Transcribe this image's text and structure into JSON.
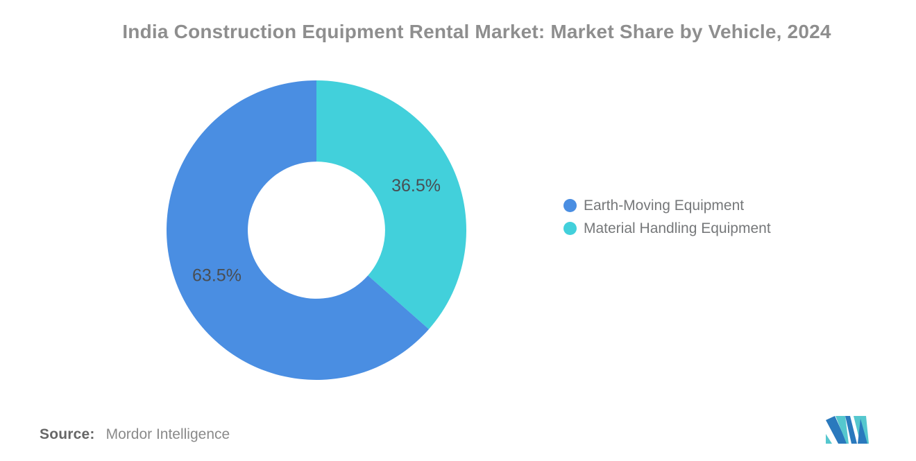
{
  "title": "India Construction Equipment Rental Market: Market Share by Vehicle, 2024",
  "chart_data": {
    "type": "pie",
    "subtype": "donut",
    "title": "India Construction Equipment Rental Market: Market Share by Vehicle, 2024",
    "slices": [
      {
        "label": "Earth-Moving Equipment",
        "value": 63.5,
        "data_label": "63.5%",
        "color": "#4a8ee2"
      },
      {
        "label": "Material Handling Equipment",
        "value": 36.5,
        "data_label": "36.5%",
        "color": "#42d0db"
      }
    ],
    "start_position": "top",
    "first_slice_clockwise_from_top": "Material Handling Equipment",
    "inner_radius_ratio": 0.458,
    "legend_position": "right",
    "data_label_color": "#494e53",
    "background": "#ffffff"
  },
  "legend": {
    "items": [
      {
        "label": "Earth-Moving Equipment",
        "color": "#4a8ee2"
      },
      {
        "label": "Material Handling Equipment",
        "color": "#42d0db"
      }
    ]
  },
  "source": {
    "prefix": "Source:",
    "text": "Mordor Intelligence"
  },
  "logo": {
    "name": "mordor-intelligence-logo",
    "blue": "#2a79bd",
    "teal": "#55c7ce"
  }
}
